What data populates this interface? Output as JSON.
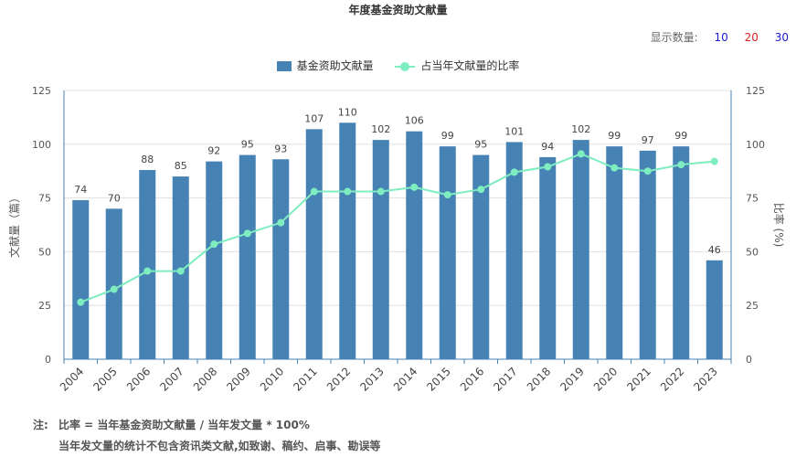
{
  "chart_data": {
    "type": "bar",
    "title": "年度基金资助文献量",
    "categories": [
      "2004",
      "2005",
      "2006",
      "2007",
      "2008",
      "2009",
      "2010",
      "2011",
      "2012",
      "2013",
      "2014",
      "2015",
      "2016",
      "2017",
      "2018",
      "2019",
      "2020",
      "2021",
      "2022",
      "2023"
    ],
    "series": [
      {
        "name": "基金资助文献量",
        "type": "bar",
        "axis": "left",
        "color": "#4682b4",
        "values": [
          74,
          70,
          88,
          85,
          92,
          95,
          93,
          107,
          110,
          102,
          106,
          99,
          95,
          101,
          94,
          102,
          99,
          97,
          99,
          46
        ]
      },
      {
        "name": "占当年文献量的比率",
        "type": "line",
        "axis": "right",
        "color": "#7eedc0",
        "values": [
          26.5,
          32.5,
          41,
          41,
          53.5,
          58.5,
          63.5,
          78,
          78,
          78,
          80,
          76.5,
          79,
          87,
          89.5,
          95.5,
          89,
          87.5,
          90.5,
          92
        ]
      }
    ],
    "ylabel_left": "文献量（篇）",
    "ylabel_right": "比率 (%)",
    "ylim": [
      0,
      125
    ],
    "yticks": [
      "0",
      "25",
      "50",
      "75",
      "100",
      "125"
    ],
    "grid": true,
    "legend_position": "top-center"
  },
  "count_selector": {
    "label": "显示数量:",
    "options": [
      {
        "label": "10",
        "color": "#1a1adb"
      },
      {
        "label": "20",
        "color": "#e02020"
      },
      {
        "label": "30",
        "color": "#1a1adb"
      }
    ]
  },
  "notes": {
    "label": "注:",
    "line1": "比率 = 当年基金资助文献量 / 当年发文量 * 100%",
    "line2": "当年发文量的统计不包含资讯类文献,如致谢、稿约、启事、勘误等"
  }
}
